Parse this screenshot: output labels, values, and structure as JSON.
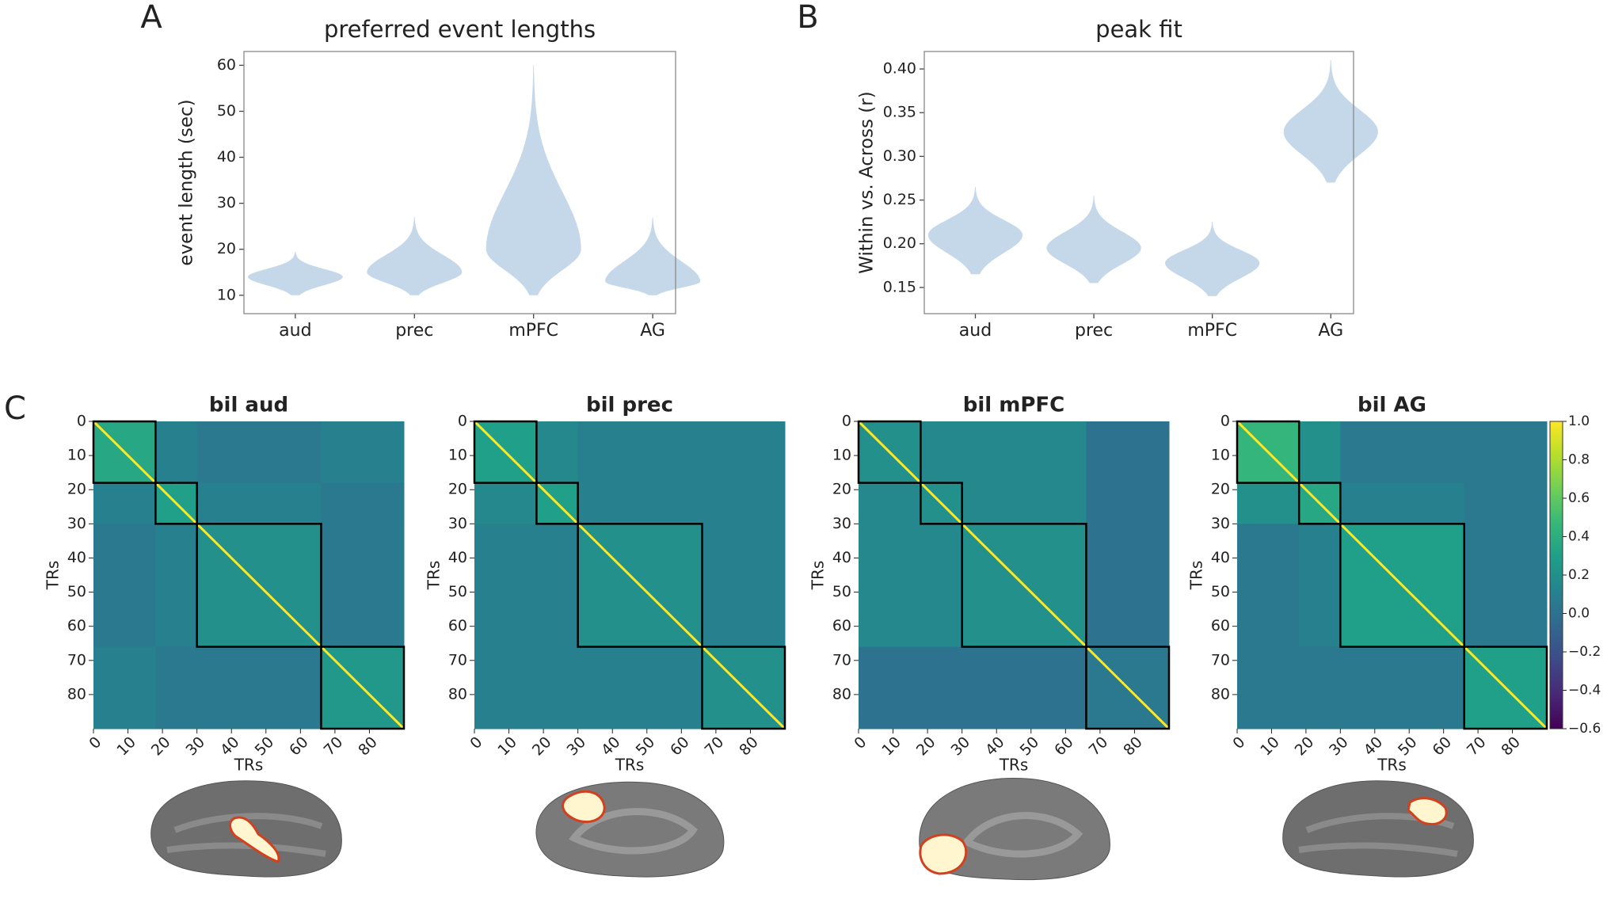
{
  "panel_labels": [
    "A",
    "B",
    "C"
  ],
  "chart_data": [
    {
      "type": "violin",
      "title": "preferred event lengths",
      "ylabel": "event length (sec)",
      "categories": [
        "aud",
        "prec",
        "mPFC",
        "AG"
      ],
      "values": [
        14,
        15,
        20,
        13
      ],
      "mins": [
        10,
        10,
        10,
        10
      ],
      "maxs": [
        19.5,
        27,
        60,
        27
      ],
      "color": "#c5d8ea",
      "ylim": [
        6,
        63
      ],
      "yticks": [
        10,
        20,
        30,
        40,
        50,
        60
      ]
    },
    {
      "type": "violin",
      "title": "peak fit",
      "ylabel": "Within vs. Across (r)",
      "categories": [
        "aud",
        "prec",
        "mPFC",
        "AG"
      ],
      "values": [
        0.21,
        0.195,
        0.178,
        0.328
      ],
      "mins": [
        0.165,
        0.155,
        0.14,
        0.27
      ],
      "maxs": [
        0.265,
        0.255,
        0.225,
        0.41
      ],
      "color": "#c5d8ea",
      "ylim": [
        0.12,
        0.42
      ],
      "yticks": [
        0.15,
        {
          "value": 0.2,
          "label": "0.20"
        },
        0.25,
        {
          "value": 0.3,
          "label": "0.30"
        },
        0.35,
        {
          "value": 0.4,
          "label": "0.40"
        }
      ]
    },
    {
      "type": "heatmap",
      "title": "bil aud",
      "xlabel": "TRs",
      "ylabel": "TRs",
      "boundaries": [
        0,
        18,
        30,
        66,
        90
      ],
      "block_values": [
        [
          0.35,
          0.1,
          0.05,
          0.1
        ],
        [
          0.1,
          0.3,
          0.1,
          0.05
        ],
        [
          0.05,
          0.1,
          0.2,
          0.05
        ],
        [
          0.1,
          0.05,
          0.05,
          0.25
        ]
      ],
      "diagonal": 1.0,
      "cmap": "viridis",
      "clim": [
        -0.6,
        1.0
      ],
      "xlim": [
        0,
        90
      ],
      "ylim": [
        0,
        90
      ],
      "xticks": [
        0,
        10,
        20,
        30,
        40,
        50,
        60,
        70,
        80
      ],
      "yticks": [
        0,
        10,
        20,
        30,
        40,
        50,
        60,
        70,
        80
      ]
    },
    {
      "type": "heatmap",
      "title": "bil prec",
      "xlabel": "TRs",
      "ylabel": "TRs",
      "boundaries": [
        0,
        18,
        30,
        66,
        90
      ],
      "block_values": [
        [
          0.3,
          0.15,
          0.1,
          0.1
        ],
        [
          0.15,
          0.3,
          0.1,
          0.1
        ],
        [
          0.1,
          0.1,
          0.2,
          0.1
        ],
        [
          0.1,
          0.1,
          0.1,
          0.2
        ]
      ],
      "diagonal": 1.0,
      "cmap": "viridis",
      "clim": [
        -0.6,
        1.0
      ],
      "xlim": [
        0,
        90
      ],
      "ylim": [
        0,
        90
      ],
      "xticks": [
        0,
        10,
        20,
        30,
        40,
        50,
        60,
        70,
        80
      ],
      "yticks": [
        0,
        10,
        20,
        30,
        40,
        50,
        60,
        70,
        80
      ]
    },
    {
      "type": "heatmap",
      "title": "bil mPFC",
      "xlabel": "TRs",
      "ylabel": "TRs",
      "boundaries": [
        0,
        18,
        30,
        66,
        90
      ],
      "block_values": [
        [
          0.2,
          0.15,
          0.15,
          0.0
        ],
        [
          0.15,
          0.2,
          0.15,
          0.0
        ],
        [
          0.15,
          0.15,
          0.2,
          0.0
        ],
        [
          0.0,
          0.0,
          0.0,
          0.05
        ]
      ],
      "diagonal": 1.0,
      "cmap": "viridis",
      "clim": [
        -0.6,
        1.0
      ],
      "xlim": [
        0,
        90
      ],
      "ylim": [
        0,
        90
      ],
      "xticks": [
        0,
        10,
        20,
        30,
        40,
        50,
        60,
        70,
        80
      ],
      "yticks": [
        0,
        10,
        20,
        30,
        40,
        50,
        60,
        70,
        80
      ]
    },
    {
      "type": "heatmap",
      "title": "bil AG",
      "xlabel": "TRs",
      "ylabel": "TRs",
      "boundaries": [
        0,
        18,
        30,
        66,
        90
      ],
      "block_values": [
        [
          0.45,
          0.2,
          0.05,
          0.05
        ],
        [
          0.2,
          0.35,
          0.1,
          0.05
        ],
        [
          0.05,
          0.1,
          0.3,
          0.05
        ],
        [
          0.05,
          0.05,
          0.05,
          0.3
        ]
      ],
      "diagonal": 1.0,
      "cmap": "viridis",
      "clim": [
        -0.6,
        1.0
      ],
      "xlim": [
        0,
        90
      ],
      "ylim": [
        0,
        90
      ],
      "xticks": [
        0,
        10,
        20,
        30,
        40,
        50,
        60,
        70,
        80
      ],
      "yticks": [
        0,
        10,
        20,
        30,
        40,
        50,
        60,
        70,
        80
      ],
      "colorbar_ticks": [
        {
          "value": 1.0,
          "label": "1.0"
        },
        0.8,
        0.6,
        0.4,
        0.2,
        {
          "value": 0,
          "label": "0.0"
        },
        {
          "value": -0.2,
          "label": "−0.2"
        },
        {
          "value": -0.4,
          "label": "−0.4"
        },
        {
          "value": -0.6,
          "label": "−0.6"
        }
      ]
    }
  ]
}
